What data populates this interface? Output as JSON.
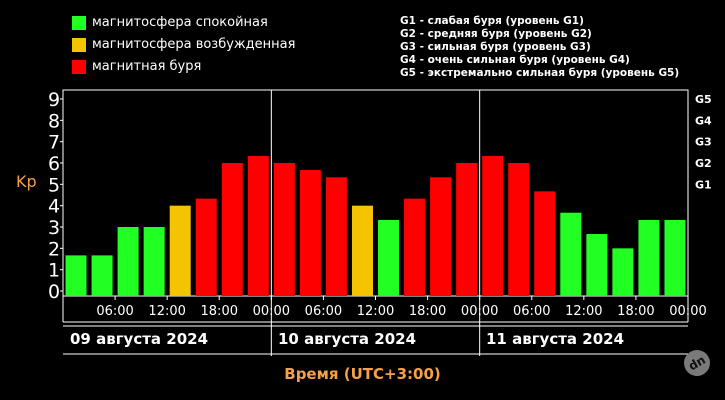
{
  "legend": [
    {
      "label": "магнитосфера спокойная",
      "color": "#22ff22"
    },
    {
      "label": "магнитосфера возбужденная",
      "color": "#f5c400"
    },
    {
      "label": "магнитная буря",
      "color": "#ff0000"
    }
  ],
  "storm_levels": [
    "G1 - слабая буря (уровень G1)",
    "G2 - средняя буря (уровень G2)",
    "G3 - сильная буря (уровень G3)",
    "G4 - очень сильная буря (уровень G4)",
    "G5 - экстремально сильная буря (уровень G5)"
  ],
  "dates": [
    "09 августа 2024",
    "10 августа 2024",
    "11 августа 2024"
  ],
  "logo_text": "dn",
  "chart_data": {
    "type": "bar",
    "ylabel": "Kp",
    "xlabel": "Время (UTC+3:00)",
    "ylim": [
      0,
      9
    ],
    "yticks": [
      0,
      1,
      2,
      3,
      4,
      5,
      6,
      7,
      8,
      9
    ],
    "g_ticks": [
      {
        "label": "G1",
        "value": 5
      },
      {
        "label": "G2",
        "value": 6
      },
      {
        "label": "G3",
        "value": 7
      },
      {
        "label": "G4",
        "value": 8
      },
      {
        "label": "G5",
        "value": 9
      }
    ],
    "xtick_labels": [
      "06:00",
      "12:00",
      "18:00",
      "00:00",
      "06:00",
      "12:00",
      "18:00",
      "00:00",
      "06:00",
      "12:00",
      "18:00",
      "00:00"
    ],
    "values": [
      1.67,
      1.67,
      3.0,
      3.0,
      4.0,
      4.33,
      6.0,
      6.33,
      6.0,
      5.67,
      5.33,
      4.0,
      3.33,
      4.33,
      5.33,
      6.0,
      6.33,
      6.0,
      4.67,
      3.67,
      2.67,
      2.0,
      3.33,
      3.33
    ],
    "colors": [
      "#22ff22",
      "#22ff22",
      "#22ff22",
      "#22ff22",
      "#f5c400",
      "#ff0000",
      "#ff0000",
      "#ff0000",
      "#ff0000",
      "#ff0000",
      "#ff0000",
      "#f5c400",
      "#22ff22",
      "#ff0000",
      "#ff0000",
      "#ff0000",
      "#ff0000",
      "#ff0000",
      "#ff0000",
      "#22ff22",
      "#22ff22",
      "#22ff22",
      "#22ff22",
      "#22ff22"
    ],
    "grid": false
  }
}
